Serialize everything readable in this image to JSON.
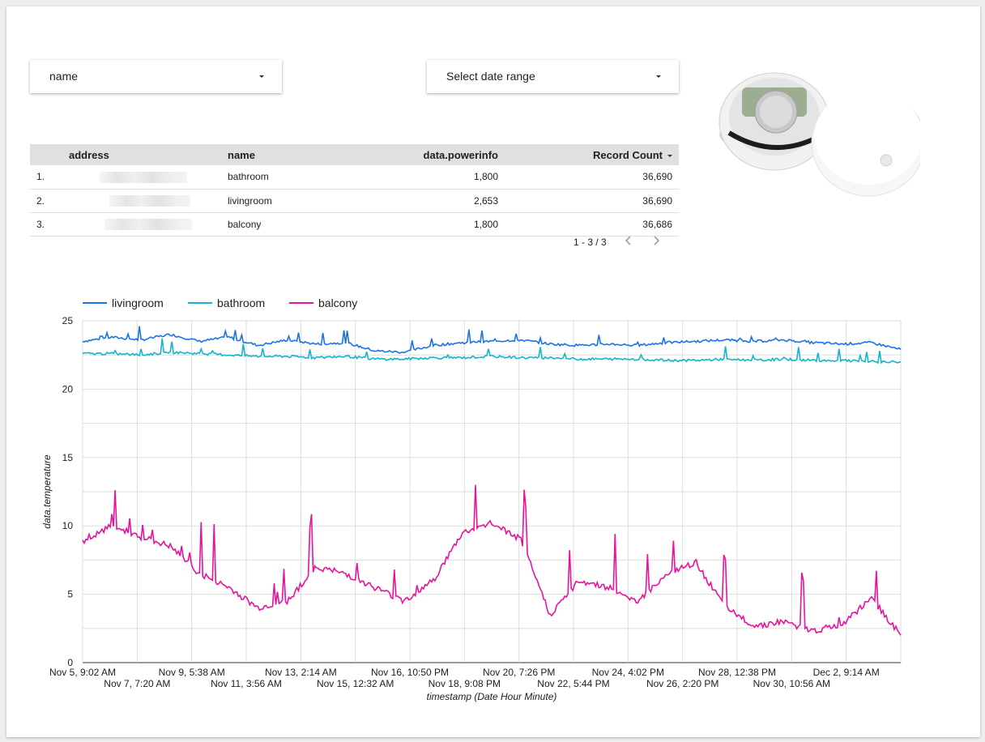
{
  "controls": {
    "name_filter_label": "name",
    "date_filter_label": "Select date range"
  },
  "table": {
    "columns": [
      "address",
      "name",
      "data.powerinfo",
      "Record Count"
    ],
    "rows": [
      {
        "index": "1.",
        "name": "bathroom",
        "powerinfo": "1,800",
        "record_count": "36,690"
      },
      {
        "index": "2.",
        "name": "livingroom",
        "powerinfo": "2,653",
        "record_count": "36,690"
      },
      {
        "index": "3.",
        "name": "balcony",
        "powerinfo": "1,800",
        "record_count": "36,686"
      }
    ],
    "pagination": "1 - 3 / 3"
  },
  "chart_data": {
    "type": "line",
    "xlabel": "timestamp (Date Hour Minute)",
    "ylabel": "data.temperature",
    "ylim": [
      0,
      25
    ],
    "yticks": [
      0,
      5,
      10,
      15,
      20,
      25
    ],
    "xlim": [
      "Nov 5, 9:02 AM",
      "Dec 3, 7:00 PM"
    ],
    "x_tick_labels": [
      "Nov 5, 9:02 AM",
      "Nov 7, 7:20 AM",
      "Nov 9, 5:38 AM",
      "Nov 11, 3:56 AM",
      "Nov 13, 2:14 AM",
      "Nov 15, 12:32 AM",
      "Nov 16, 10:50 PM",
      "Nov 18, 9:08 PM",
      "Nov 20, 7:26 PM",
      "Nov 22, 5:44 PM",
      "Nov 24, 4:02 PM",
      "Nov 26, 2:20 PM",
      "Nov 28, 12:38 PM",
      "Nov 30, 10:56 AM",
      "Dec 2, 9:14 AM"
    ],
    "grid": true,
    "legend_position": "top-left",
    "series": [
      {
        "name": "livingroom",
        "color": "#1a73e8",
        "x": [
          "Nov 5",
          "Nov 6",
          "Nov 7",
          "Nov 8",
          "Nov 9",
          "Nov 10",
          "Nov 11",
          "Nov 12",
          "Nov 13",
          "Nov 14",
          "Nov 15",
          "Nov 16",
          "Nov 17",
          "Nov 18",
          "Nov 19",
          "Nov 20",
          "Nov 21",
          "Nov 22",
          "Nov 23",
          "Nov 24",
          "Nov 25",
          "Nov 26",
          "Nov 27",
          "Nov 28",
          "Nov 29",
          "Nov 30",
          "Dec 1",
          "Dec 2",
          "Dec 3"
        ],
        "values": [
          23.5,
          23.8,
          23.6,
          24.0,
          23.5,
          23.8,
          23.2,
          23.6,
          23.3,
          23.4,
          22.8,
          22.7,
          23.2,
          23.4,
          23.5,
          23.6,
          23.3,
          23.2,
          23.3,
          23.2,
          23.4,
          23.5,
          23.6,
          23.5,
          23.6,
          23.4,
          23.3,
          23.4,
          22.9
        ]
      },
      {
        "name": "bathroom",
        "color": "#12b5cb",
        "x": [
          "Nov 5",
          "Nov 6",
          "Nov 7",
          "Nov 8",
          "Nov 9",
          "Nov 10",
          "Nov 11",
          "Nov 12",
          "Nov 13",
          "Nov 14",
          "Nov 15",
          "Nov 16",
          "Nov 17",
          "Nov 18",
          "Nov 19",
          "Nov 20",
          "Nov 21",
          "Nov 22",
          "Nov 23",
          "Nov 24",
          "Nov 25",
          "Nov 26",
          "Nov 27",
          "Nov 28",
          "Nov 29",
          "Nov 30",
          "Dec 1",
          "Dec 2",
          "Dec 3"
        ],
        "values": [
          22.6,
          22.6,
          22.5,
          22.7,
          22.6,
          22.5,
          22.4,
          22.4,
          22.3,
          22.4,
          22.2,
          22.2,
          22.3,
          22.3,
          22.4,
          22.3,
          22.3,
          22.2,
          22.2,
          22.2,
          22.1,
          22.1,
          22.2,
          22.1,
          22.2,
          22.1,
          22.1,
          22.0,
          22.0
        ]
      },
      {
        "name": "balcony",
        "color": "#e8139c",
        "x": [
          "Nov 5",
          "Nov 6",
          "Nov 7",
          "Nov 8",
          "Nov 9",
          "Nov 10",
          "Nov 11",
          "Nov 12",
          "Nov 13",
          "Nov 14",
          "Nov 15",
          "Nov 16",
          "Nov 17",
          "Nov 18",
          "Nov 19",
          "Nov 20",
          "Nov 21",
          "Nov 22",
          "Nov 23",
          "Nov 24",
          "Nov 25",
          "Nov 26",
          "Nov 27",
          "Nov 28",
          "Nov 29",
          "Nov 30",
          "Dec 1",
          "Dec 2",
          "Dec 3"
        ],
        "values": [
          8.8,
          10.0,
          9.2,
          8.5,
          6.5,
          5.5,
          4.0,
          4.5,
          7.0,
          6.5,
          5.5,
          4.5,
          6.0,
          9.5,
          10.2,
          9.0,
          3.5,
          6.0,
          5.5,
          4.5,
          6.5,
          7.3,
          4.0,
          2.7,
          3.0,
          2.3,
          2.8,
          4.7,
          2.0
        ]
      }
    ]
  }
}
